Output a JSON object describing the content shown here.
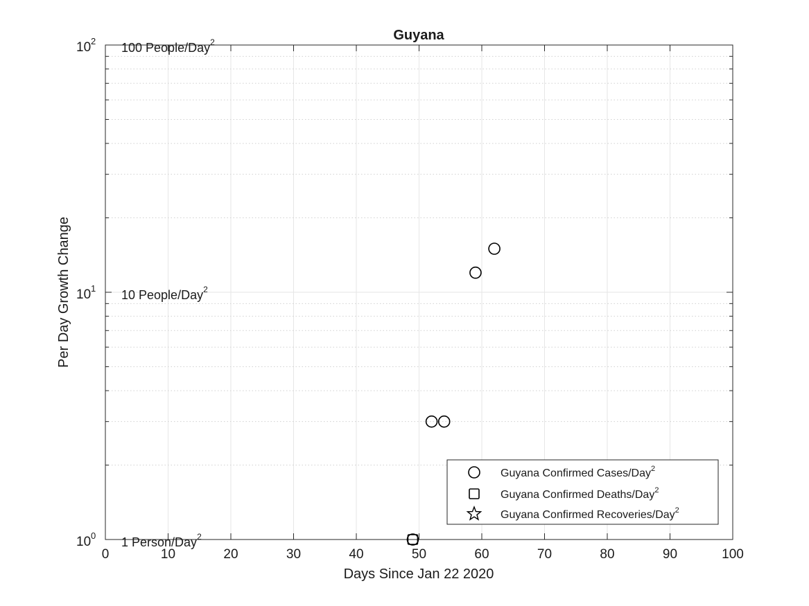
{
  "chart_data": {
    "type": "scatter",
    "title": "Guyana",
    "xlabel": "Days Since Jan 22 2020",
    "ylabel": "Per Day Growth Change",
    "xlim": [
      0,
      100
    ],
    "ylim": [
      1,
      100
    ],
    "yscale": "log",
    "grid": true,
    "legend_position": "bottom-right",
    "x_ticks": [
      0,
      10,
      20,
      30,
      40,
      50,
      60,
      70,
      80,
      90,
      100
    ],
    "x_tick_labels": [
      "0",
      "10",
      "20",
      "30",
      "40",
      "50",
      "60",
      "70",
      "80",
      "90",
      "100"
    ],
    "y_ticks": [
      {
        "value": 1,
        "base": "10",
        "exp": "0"
      },
      {
        "value": 10,
        "base": "10",
        "exp": "1"
      },
      {
        "value": 100,
        "base": "10",
        "exp": "2"
      }
    ],
    "reference_labels": [
      {
        "value": 100,
        "text": "100 People/Day",
        "sup": "2"
      },
      {
        "value": 10,
        "text": "10 People/Day",
        "sup": "2"
      },
      {
        "value": 1,
        "text": "1 Person/Day",
        "sup": "2"
      }
    ],
    "series": [
      {
        "name": "Guyana Confirmed Cases/Day",
        "name_sup": "2",
        "marker": "circle",
        "color": "#000000",
        "points": [
          {
            "x": 49,
            "y": 1
          },
          {
            "x": 52,
            "y": 3
          },
          {
            "x": 54,
            "y": 3
          },
          {
            "x": 59,
            "y": 12
          },
          {
            "x": 62,
            "y": 15
          }
        ]
      },
      {
        "name": "Guyana Confirmed Deaths/Day",
        "name_sup": "2",
        "marker": "square",
        "color": "#000000",
        "points": [
          {
            "x": 49,
            "y": 1
          }
        ]
      },
      {
        "name": "Guyana Confirmed Recoveries/Day",
        "name_sup": "2",
        "marker": "star",
        "color": "#000000",
        "points": []
      }
    ]
  }
}
